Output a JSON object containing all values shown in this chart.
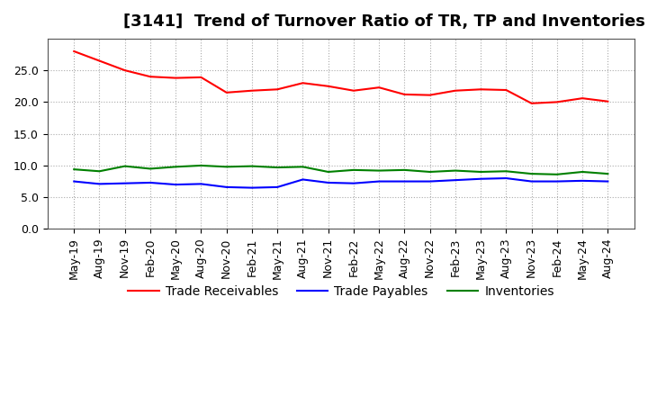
{
  "title": "[3141]  Trend of Turnover Ratio of TR, TP and Inventories",
  "x_labels": [
    "May-19",
    "Aug-19",
    "Nov-19",
    "Feb-20",
    "May-20",
    "Aug-20",
    "Nov-20",
    "Feb-21",
    "May-21",
    "Aug-21",
    "Nov-21",
    "Feb-22",
    "May-22",
    "Aug-22",
    "Nov-22",
    "Feb-23",
    "May-23",
    "Aug-23",
    "Nov-23",
    "Feb-24",
    "May-24",
    "Aug-24"
  ],
  "trade_receivables": [
    28.0,
    26.5,
    25.0,
    24.0,
    23.8,
    23.9,
    21.5,
    21.8,
    22.0,
    23.0,
    22.5,
    21.8,
    22.3,
    21.2,
    21.1,
    21.8,
    22.0,
    21.9,
    19.8,
    20.0,
    20.6,
    20.1
  ],
  "trade_payables": [
    7.5,
    7.1,
    7.2,
    7.3,
    7.0,
    7.1,
    6.6,
    6.5,
    6.6,
    7.8,
    7.3,
    7.2,
    7.5,
    7.5,
    7.5,
    7.7,
    7.9,
    8.0,
    7.5,
    7.5,
    7.6,
    7.5
  ],
  "inventories": [
    9.4,
    9.1,
    9.9,
    9.5,
    9.8,
    10.0,
    9.8,
    9.9,
    9.7,
    9.8,
    9.0,
    9.3,
    9.2,
    9.3,
    9.0,
    9.2,
    9.0,
    9.1,
    8.7,
    8.6,
    9.0,
    8.7
  ],
  "ylim": [
    0,
    30
  ],
  "yticks": [
    0.0,
    5.0,
    10.0,
    15.0,
    20.0,
    25.0
  ],
  "legend_labels": [
    "Trade Receivables",
    "Trade Payables",
    "Inventories"
  ],
  "line_colors": [
    "#ff0000",
    "#0000ff",
    "#008000"
  ],
  "background_color": "#ffffff",
  "grid_color": "#aaaaaa",
  "title_fontsize": 13,
  "tick_fontsize": 9,
  "legend_fontsize": 10
}
